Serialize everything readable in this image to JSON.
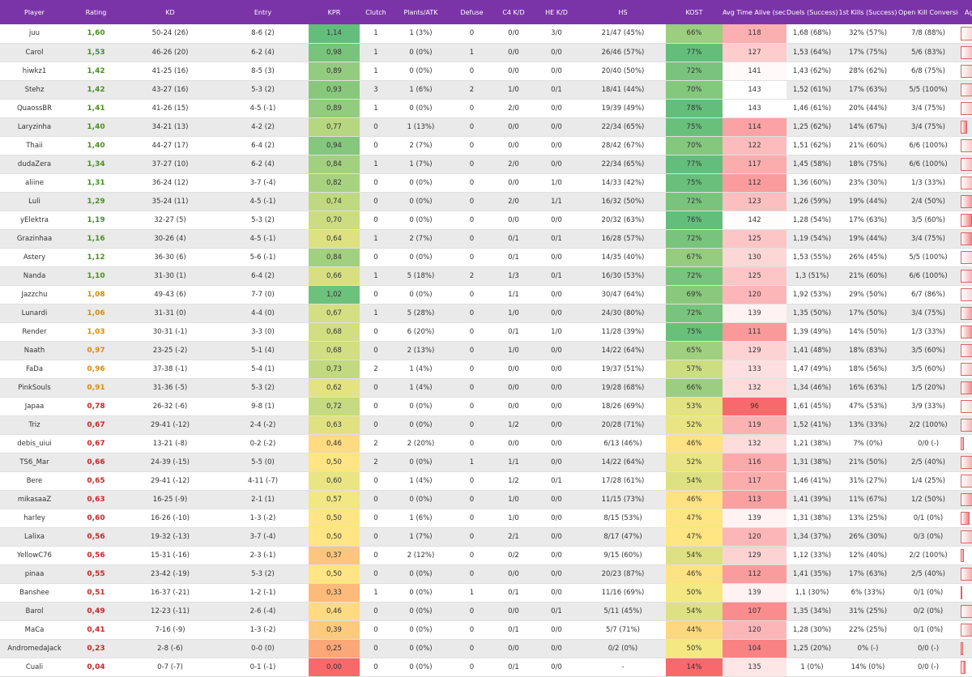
{
  "columns": [
    "Player",
    "Rating",
    "KD",
    "Entry",
    "KPR",
    "Clutch",
    "Plants/ATK",
    "Defuse",
    "C4 K/D",
    "HE K/D",
    "HS",
    "KOST",
    "Avg Time Alive (sec)",
    "Duels (Success)",
    "1st Kills (Success)",
    "Open Kill Conversion",
    "Aggressivity"
  ],
  "colors": {
    "header_bg": "#7a34a8",
    "rating_green": "#4a8f1e",
    "rating_orange": "#d98c00",
    "rating_red": "#c62828",
    "bar_red": "#f27b7b"
  },
  "chart_data": {
    "type": "table",
    "title": "",
    "rows": [
      {
        "player": "juu",
        "rating": "1,60",
        "kd": "50-24 (26)",
        "entry": "8-6 (2)",
        "kpr": "1,14",
        "clutch": "1",
        "plants": "1 (3%)",
        "defuse": "0",
        "c4": "0/0",
        "he": "3/0",
        "hs": "21/47 (45%)",
        "kost": "66%",
        "alive": "118",
        "duels": "1,68 (68%)",
        "firstkills": "32% (57%)",
        "openkill": "7/8 (88%)",
        "aggr": "97,1"
      },
      {
        "player": "Carol",
        "rating": "1,53",
        "kd": "46-26 (20)",
        "entry": "6-2 (4)",
        "kpr": "0,98",
        "clutch": "1",
        "plants": "0 (0%)",
        "defuse": "1",
        "c4": "0/0",
        "he": "0/0",
        "hs": "26/46 (57%)",
        "kost": "77%",
        "alive": "127",
        "duels": "1,53 (64%)",
        "firstkills": "17% (75%)",
        "openkill": "5/6 (83%)",
        "aggr": "61,6"
      },
      {
        "player": "hiwkz1",
        "rating": "1,42",
        "kd": "41-25 (16)",
        "entry": "8-5 (3)",
        "kpr": "0,89",
        "clutch": "1",
        "plants": "0 (0%)",
        "defuse": "0",
        "c4": "0/0",
        "he": "0/0",
        "hs": "20/40 (50%)",
        "kost": "72%",
        "alive": "141",
        "duels": "1,43 (62%)",
        "firstkills": "28% (62%)",
        "openkill": "6/8 (75%)",
        "aggr": "73,5"
      },
      {
        "player": "Stehz",
        "rating": "1,42",
        "kd": "43-27 (16)",
        "entry": "5-3 (2)",
        "kpr": "0,93",
        "clutch": "3",
        "plants": "1 (6%)",
        "defuse": "2",
        "c4": "1/0",
        "he": "0/1",
        "hs": "18/41 (44%)",
        "kost": "70%",
        "alive": "143",
        "duels": "1,52 (61%)",
        "firstkills": "17% (63%)",
        "openkill": "5/5 (100%)",
        "aggr": "61,8"
      },
      {
        "player": "QuaossBR",
        "rating": "1,41",
        "kd": "41-26 (15)",
        "entry": "4-5 (-1)",
        "kpr": "0,89",
        "clutch": "1",
        "plants": "0 (0%)",
        "defuse": "0",
        "c4": "2/0",
        "he": "0/0",
        "hs": "19/39 (49%)",
        "kost": "78%",
        "alive": "143",
        "duels": "1,46 (61%)",
        "firstkills": "20% (44%)",
        "openkill": "3/4 (75%)",
        "aggr": "66,8"
      },
      {
        "player": "Laryzinha",
        "rating": "1,40",
        "kd": "34-21 (13)",
        "entry": "4-2 (2)",
        "kpr": "0,77",
        "clutch": "0",
        "plants": "1 (13%)",
        "defuse": "0",
        "c4": "0/0",
        "he": "0/0",
        "hs": "22/34 (65%)",
        "kost": "75%",
        "alive": "114",
        "duels": "1,25 (62%)",
        "firstkills": "14% (67%)",
        "openkill": "3/4 (75%)",
        "aggr": "18,2"
      },
      {
        "player": "Thaii",
        "rating": "1,40",
        "kd": "44-27 (17)",
        "entry": "6-4 (2)",
        "kpr": "0,94",
        "clutch": "0",
        "plants": "2 (7%)",
        "defuse": "0",
        "c4": "0/0",
        "he": "0/0",
        "hs": "28/42 (67%)",
        "kost": "70%",
        "alive": "122",
        "duels": "1,51 (62%)",
        "firstkills": "21% (60%)",
        "openkill": "6/6 (100%)",
        "aggr": "74,6"
      },
      {
        "player": "dudaZera",
        "rating": "1,34",
        "kd": "37-27 (10)",
        "entry": "6-2 (4)",
        "kpr": "0,84",
        "clutch": "1",
        "plants": "1 (7%)",
        "defuse": "0",
        "c4": "2/0",
        "he": "0/0",
        "hs": "22/34 (65%)",
        "kost": "77%",
        "alive": "117",
        "duels": "1,45 (58%)",
        "firstkills": "18% (75%)",
        "openkill": "6/6 (100%)",
        "aggr": "58,8"
      },
      {
        "player": "aliine",
        "rating": "1,31",
        "kd": "36-24 (12)",
        "entry": "3-7 (-4)",
        "kpr": "0,82",
        "clutch": "0",
        "plants": "0 (0%)",
        "defuse": "0",
        "c4": "0/0",
        "he": "1/0",
        "hs": "14/33 (42%)",
        "kost": "75%",
        "alive": "112",
        "duels": "1,36 (60%)",
        "firstkills": "23% (30%)",
        "openkill": "1/3 (33%)",
        "aggr": "63,2"
      },
      {
        "player": "Luli",
        "rating": "1,29",
        "kd": "35-24 (11)",
        "entry": "4-5 (-1)",
        "kpr": "0,74",
        "clutch": "0",
        "plants": "0 (0%)",
        "defuse": "0",
        "c4": "2/0",
        "he": "1/1",
        "hs": "16/32 (50%)",
        "kost": "72%",
        "alive": "123",
        "duels": "1,26 (59%)",
        "firstkills": "19% (44%)",
        "openkill": "2/4 (50%)",
        "aggr": "39,1"
      },
      {
        "player": "yElektra",
        "rating": "1,19",
        "kd": "32-27 (5)",
        "entry": "5-3 (2)",
        "kpr": "0,70",
        "clutch": "0",
        "plants": "0 (0%)",
        "defuse": "0",
        "c4": "0/0",
        "he": "0/0",
        "hs": "20/32 (63%)",
        "kost": "76%",
        "alive": "142",
        "duels": "1,28 (54%)",
        "firstkills": "17% (63%)",
        "openkill": "3/5 (60%)",
        "aggr": "31,5"
      },
      {
        "player": "Grazinhaa",
        "rating": "1,16",
        "kd": "30-26 (4)",
        "entry": "4-5 (-1)",
        "kpr": "0,64",
        "clutch": "1",
        "plants": "2 (7%)",
        "defuse": "0",
        "c4": "0/1",
        "he": "0/1",
        "hs": "16/28 (57%)",
        "kost": "72%",
        "alive": "125",
        "duels": "1,19 (54%)",
        "firstkills": "19% (44%)",
        "openkill": "3/4 (75%)",
        "aggr": "33,2"
      },
      {
        "player": "Astery",
        "rating": "1,12",
        "kd": "36-30 (6)",
        "entry": "5-6 (-1)",
        "kpr": "0,84",
        "clutch": "0",
        "plants": "0 (0%)",
        "defuse": "0",
        "c4": "0/1",
        "he": "0/0",
        "hs": "14/35 (40%)",
        "kost": "67%",
        "alive": "130",
        "duels": "1,53 (55%)",
        "firstkills": "26% (45%)",
        "openkill": "5/5 (100%)",
        "aggr": "85,2"
      },
      {
        "player": "Nanda",
        "rating": "1,10",
        "kd": "31-30 (1)",
        "entry": "6-4 (2)",
        "kpr": "0,66",
        "clutch": "1",
        "plants": "5 (18%)",
        "defuse": "2",
        "c4": "1/3",
        "he": "0/1",
        "hs": "16/30 (53%)",
        "kost": "72%",
        "alive": "125",
        "duels": "1,3 (51%)",
        "firstkills": "21% (60%)",
        "openkill": "6/6 (100%)",
        "aggr": "49,6"
      },
      {
        "player": "Jazzchu",
        "rating": "1,08",
        "kd": "49-43 (6)",
        "entry": "7-7 (0)",
        "kpr": "1,02",
        "clutch": "0",
        "plants": "0 (0%)",
        "defuse": "0",
        "c4": "1/1",
        "he": "0/0",
        "hs": "30/47 (64%)",
        "kost": "69%",
        "alive": "120",
        "duels": "1,92 (53%)",
        "firstkills": "29% (50%)",
        "openkill": "6/7 (86%)",
        "aggr": "94,1"
      },
      {
        "player": "Lunardi",
        "rating": "1,06",
        "kd": "31-31 (0)",
        "entry": "4-4 (0)",
        "kpr": "0,67",
        "clutch": "1",
        "plants": "5 (28%)",
        "defuse": "0",
        "c4": "1/0",
        "he": "0/0",
        "hs": "24/30 (80%)",
        "kost": "72%",
        "alive": "139",
        "duels": "1,35 (50%)",
        "firstkills": "17% (50%)",
        "openkill": "3/4 (75%)",
        "aggr": "42,1"
      },
      {
        "player": "Render",
        "rating": "1,03",
        "kd": "30-31 (-1)",
        "entry": "3-3 (0)",
        "kpr": "0,68",
        "clutch": "0",
        "plants": "6 (20%)",
        "defuse": "0",
        "c4": "0/1",
        "he": "1/0",
        "hs": "11/28 (39%)",
        "kost": "75%",
        "alive": "111",
        "duels": "1,39 (49%)",
        "firstkills": "14% (50%)",
        "openkill": "1/3 (33%)",
        "aggr": "37,1"
      },
      {
        "player": "Naath",
        "rating": "0,97",
        "kd": "23-25 (-2)",
        "entry": "5-1 (4)",
        "kpr": "0,68",
        "clutch": "0",
        "plants": "2 (13%)",
        "defuse": "0",
        "c4": "1/0",
        "he": "0/0",
        "hs": "14/22 (64%)",
        "kost": "65%",
        "alive": "129",
        "duels": "1,41 (48%)",
        "firstkills": "18% (83%)",
        "openkill": "3/5 (60%)",
        "aggr": "53,0"
      },
      {
        "player": "FaDa",
        "rating": "0,96",
        "kd": "37-38 (-1)",
        "entry": "5-4 (1)",
        "kpr": "0,73",
        "clutch": "2",
        "plants": "1 (4%)",
        "defuse": "0",
        "c4": "0/0",
        "he": "0/0",
        "hs": "19/37 (51%)",
        "kost": "57%",
        "alive": "133",
        "duels": "1,47 (49%)",
        "firstkills": "18% (56%)",
        "openkill": "3/5 (60%)",
        "aggr": "62,5"
      },
      {
        "player": "PinkSouls",
        "rating": "0,91",
        "kd": "31-36 (-5)",
        "entry": "5-3 (2)",
        "kpr": "0,62",
        "clutch": "0",
        "plants": "1 (4%)",
        "defuse": "0",
        "c4": "0/0",
        "he": "0/0",
        "hs": "19/28 (68%)",
        "kost": "66%",
        "alive": "132",
        "duels": "1,34 (46%)",
        "firstkills": "16% (63%)",
        "openkill": "1/5 (20%)",
        "aggr": "34,4"
      },
      {
        "player": "Japaa",
        "rating": "0,78",
        "kd": "26-32 (-6)",
        "entry": "9-8 (1)",
        "kpr": "0,72",
        "clutch": "0",
        "plants": "0 (0%)",
        "defuse": "0",
        "c4": "0/0",
        "he": "0/0",
        "hs": "18/26 (69%)",
        "kost": "53%",
        "alive": "96",
        "duels": "1,61 (45%)",
        "firstkills": "47% (53%)",
        "openkill": "3/9 (33%)",
        "aggr": "97,1"
      },
      {
        "player": "Triz",
        "rating": "0,67",
        "kd": "29-41 (-12)",
        "entry": "2-4 (-2)",
        "kpr": "0,63",
        "clutch": "0",
        "plants": "0 (0%)",
        "defuse": "0",
        "c4": "1/2",
        "he": "0/0",
        "hs": "20/28 (71%)",
        "kost": "52%",
        "alive": "119",
        "duels": "1,52 (41%)",
        "firstkills": "13% (33%)",
        "openkill": "2/2 (100%)",
        "aggr": "51,2"
      },
      {
        "player": "debis_uiui",
        "rating": "0,67",
        "kd": "13-21 (-8)",
        "entry": "0-2 (-2)",
        "kpr": "0,46",
        "clutch": "2",
        "plants": "2 (20%)",
        "defuse": "0",
        "c4": "0/0",
        "he": "0/0",
        "hs": "6/13 (46%)",
        "kost": "46%",
        "alive": "132",
        "duels": "1,21 (38%)",
        "firstkills": "7% (0%)",
        "openkill": "0/0 (-)",
        "aggr": "8,8"
      },
      {
        "player": "TS6_Mar",
        "rating": "0,66",
        "kd": "24-39 (-15)",
        "entry": "5-5 (0)",
        "kpr": "0,50",
        "clutch": "2",
        "plants": "0 (0%)",
        "defuse": "1",
        "c4": "1/1",
        "he": "0/0",
        "hs": "14/22 (64%)",
        "kost": "52%",
        "alive": "116",
        "duels": "1,31 (38%)",
        "firstkills": "21% (50%)",
        "openkill": "2/5 (40%)",
        "aggr": "49,0"
      },
      {
        "player": "Bere",
        "rating": "0,65",
        "kd": "29-41 (-12)",
        "entry": "4-11 (-7)",
        "kpr": "0,60",
        "clutch": "0",
        "plants": "1 (4%)",
        "defuse": "0",
        "c4": "1/2",
        "he": "0/1",
        "hs": "17/28 (61%)",
        "kost": "54%",
        "alive": "117",
        "duels": "1,46 (41%)",
        "firstkills": "31% (27%)",
        "openkill": "1/4 (25%)",
        "aggr": "83,0"
      },
      {
        "player": "mikasaaZ",
        "rating": "0,63",
        "kd": "16-25 (-9)",
        "entry": "2-1 (1)",
        "kpr": "0,57",
        "clutch": "0",
        "plants": "0 (0%)",
        "defuse": "0",
        "c4": "1/0",
        "he": "0/0",
        "hs": "11/15 (73%)",
        "kost": "46%",
        "alive": "113",
        "duels": "1,41 (39%)",
        "firstkills": "11% (67%)",
        "openkill": "1/2 (50%)",
        "aggr": "40,3"
      },
      {
        "player": "harley",
        "rating": "0,60",
        "kd": "16-26 (-10)",
        "entry": "1-3 (-2)",
        "kpr": "0,50",
        "clutch": "0",
        "plants": "1 (6%)",
        "defuse": "0",
        "c4": "1/0",
        "he": "0/0",
        "hs": "8/15 (53%)",
        "kost": "47%",
        "alive": "139",
        "duels": "1,31 (38%)",
        "firstkills": "13% (25%)",
        "openkill": "0/1 (0%)",
        "aggr": "24,0"
      },
      {
        "player": "Lalixa",
        "rating": "0,56",
        "kd": "19-32 (-13)",
        "entry": "3-7 (-4)",
        "kpr": "0,50",
        "clutch": "0",
        "plants": "1 (7%)",
        "defuse": "0",
        "c4": "2/1",
        "he": "0/0",
        "hs": "8/17 (47%)",
        "kost": "47%",
        "alive": "120",
        "duels": "1,34 (37%)",
        "firstkills": "26% (30%)",
        "openkill": "0/3 (0%)",
        "aggr": "60,9"
      },
      {
        "player": "YellowC76",
        "rating": "0,56",
        "kd": "15-31 (-16)",
        "entry": "2-3 (-1)",
        "kpr": "0,37",
        "clutch": "0",
        "plants": "2 (12%)",
        "defuse": "0",
        "c4": "0/2",
        "he": "0/0",
        "hs": "9/15 (60%)",
        "kost": "54%",
        "alive": "129",
        "duels": "1,12 (33%)",
        "firstkills": "12% (40%)",
        "openkill": "2/2 (100%)",
        "aggr": "8,8"
      },
      {
        "player": "pinaa",
        "rating": "0,55",
        "kd": "23-42 (-19)",
        "entry": "5-3 (2)",
        "kpr": "0,50",
        "clutch": "0",
        "plants": "0 (0%)",
        "defuse": "0",
        "c4": "0/0",
        "he": "0/0",
        "hs": "20/23 (87%)",
        "kost": "46%",
        "alive": "112",
        "duels": "1,41 (35%)",
        "firstkills": "17% (63%)",
        "openkill": "2/5 (40%)",
        "aggr": "48,1"
      },
      {
        "player": "Banshee",
        "rating": "0,51",
        "kd": "16-37 (-21)",
        "entry": "1-2 (-1)",
        "kpr": "0,33",
        "clutch": "1",
        "plants": "0 (0%)",
        "defuse": "1",
        "c4": "0/1",
        "he": "0/0",
        "hs": "11/16 (69%)",
        "kost": "50%",
        "alive": "139",
        "duels": "1,1 (30%)",
        "firstkills": "6% (33%)",
        "openkill": "0/1 (0%)",
        "aggr": "2,9"
      },
      {
        "player": "Barol",
        "rating": "0,49",
        "kd": "12-23 (-11)",
        "entry": "2-6 (-4)",
        "kpr": "0,46",
        "clutch": "0",
        "plants": "0 (0%)",
        "defuse": "0",
        "c4": "0/0",
        "he": "0/1",
        "hs": "5/11 (45%)",
        "kost": "54%",
        "alive": "107",
        "duels": "1,35 (34%)",
        "firstkills": "31% (25%)",
        "openkill": "0/2 (0%)",
        "aggr": "68,3"
      },
      {
        "player": "MaCa",
        "rating": "0,41",
        "kd": "7-16 (-9)",
        "entry": "1-3 (-2)",
        "kpr": "0,39",
        "clutch": "0",
        "plants": "0 (0%)",
        "defuse": "0",
        "c4": "0/1",
        "he": "0/0",
        "hs": "5/7 (71%)",
        "kost": "44%",
        "alive": "120",
        "duels": "1,28 (30%)",
        "firstkills": "22% (25%)",
        "openkill": "0/1 (0%)",
        "aggr": "48,9"
      },
      {
        "player": "AndromedaJack",
        "rating": "0,23",
        "kd": "2-8 (-6)",
        "entry": "0-0 (0)",
        "kpr": "0,25",
        "clutch": "0",
        "plants": "0 (0%)",
        "defuse": "0",
        "c4": "0/0",
        "he": "0/0",
        "hs": "0/2 (0%)",
        "kost": "50%",
        "alive": "104",
        "duels": "1,25 (20%)",
        "firstkills": "0% (-)",
        "openkill": "0/0 (-)",
        "aggr": "7,6"
      },
      {
        "player": "Cuali",
        "rating": "0,04",
        "kd": "0-7 (-7)",
        "entry": "0-1 (-1)",
        "kpr": "0,00",
        "clutch": "0",
        "plants": "0 (0%)",
        "defuse": "0",
        "c4": "0/1",
        "he": "0/0",
        "hs": "-",
        "kost": "14%",
        "alive": "135",
        "duels": "1 (0%)",
        "firstkills": "14% (0%)",
        "openkill": "0/0 (-)",
        "aggr": "13,2"
      }
    ]
  }
}
